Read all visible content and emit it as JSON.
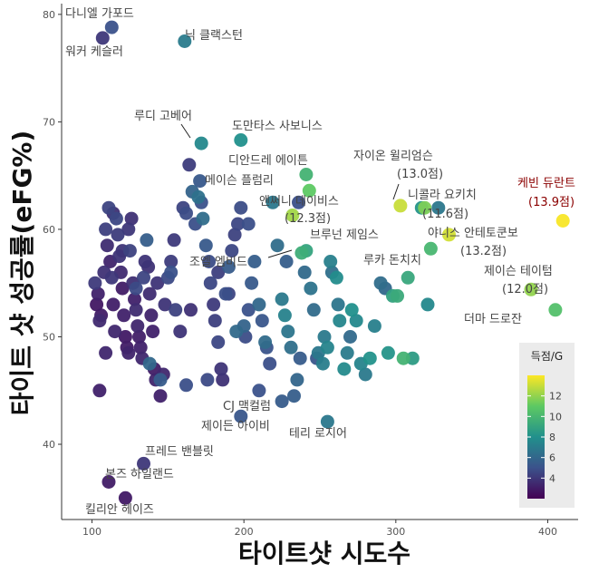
{
  "chart_data": {
    "type": "scatter",
    "xlabel": "타이트샷 시도수",
    "ylabel": "타이트 샷 성공률(eFG%)",
    "xlim": [
      80,
      420
    ],
    "ylim": [
      33,
      81
    ],
    "x_ticks": [
      100,
      200,
      300,
      400
    ],
    "y_ticks": [
      40,
      50,
      60,
      70,
      80
    ],
    "grid": false,
    "legend": {
      "title": "득점/G",
      "ticks": [
        4,
        6,
        8,
        10,
        12
      ],
      "range": [
        2,
        14
      ],
      "placement": "bottom-right"
    },
    "colors": [
      "#440154",
      "#3b528b",
      "#21908c",
      "#5dc963",
      "#fde725"
    ],
    "highlight_color": "#8b0000",
    "labeled_points": [
      {
        "name": "다니엘 가포드",
        "x": 113,
        "y": 78.8,
        "ppg": 5.0
      },
      {
        "name": "워커 케슬러",
        "x": 107,
        "y": 77.8,
        "ppg": 4.0
      },
      {
        "name": "닉 클랙스턴",
        "x": 161,
        "y": 77.5,
        "ppg": 7.0
      },
      {
        "name": "루디 고베어",
        "x": 172,
        "y": 68.0,
        "ppg": 7.6
      },
      {
        "name": "도만타스 사보니스",
        "x": 198,
        "y": 68.3,
        "ppg": 8.0
      },
      {
        "name": "디안드레 에이튼",
        "x": 241,
        "y": 65.1,
        "ppg": 9.8
      },
      {
        "name": "메이슨 플럼리",
        "x": 243,
        "y": 63.6,
        "ppg": 11.0
      },
      {
        "name": "자이온 윌리엄슨",
        "value_label": "(13.0점)",
        "x": 303,
        "y": 62.2,
        "ppg": 13.0
      },
      {
        "name": "니콜라 요키치",
        "value_label": "(11.6점)",
        "x": 319,
        "y": 62.0,
        "ppg": 11.6
      },
      {
        "name": "케빈 듀란트",
        "value_label": "(13.9점)",
        "x": 410,
        "y": 60.8,
        "ppg": 13.9
      },
      {
        "name": "앤써니 데이비스",
        "value_label": "(12.3점)",
        "x": 232,
        "y": 61.3,
        "ppg": 12.3
      },
      {
        "name": "브루넌 제임스",
        "x": 241,
        "y": 58.0,
        "ppg": 9.0
      },
      {
        "name": "야니스 안테토쿤보",
        "value_label": "(13.2점)",
        "x": 335,
        "y": 59.5,
        "ppg": 13.2
      },
      {
        "name": "조엘 엠비드",
        "x": 238,
        "y": 57.8,
        "ppg": 9.5
      },
      {
        "name": "루카 돈치치",
        "x": 323,
        "y": 58.2,
        "ppg": 10.0
      },
      {
        "name": "제이슨 테이텀",
        "value_label": "(12.0점)",
        "x": 389,
        "y": 54.4,
        "ppg": 12.0
      },
      {
        "name": "더마 드로잔",
        "x": 405,
        "y": 52.5,
        "ppg": 10.5
      },
      {
        "name": "CJ 맥컬럼",
        "x": 198,
        "y": 42.6,
        "ppg": 5.2
      },
      {
        "name": "제이든 아이비",
        "x": 225,
        "y": 44.0,
        "ppg": 5.5
      },
      {
        "name": "테리 로지어",
        "x": 255,
        "y": 42.1,
        "ppg": 6.8
      },
      {
        "name": "프레드 밴블릿",
        "x": 134,
        "y": 38.2,
        "ppg": 4.0
      },
      {
        "name": "본즈 하일랜드",
        "x": 111,
        "y": 36.5,
        "ppg": 3.0
      },
      {
        "name": "킬리안 헤이즈",
        "x": 122,
        "y": 35.0,
        "ppg": 2.9
      }
    ],
    "points": [
      [
        102,
        55.0,
        4.1
      ],
      [
        104,
        54.0,
        3.2
      ],
      [
        106,
        52.0,
        3.0
      ],
      [
        103,
        53.0,
        2.8
      ],
      [
        105,
        51.5,
        3.5
      ],
      [
        108,
        56.0,
        3.8
      ],
      [
        110,
        58.5,
        3.6
      ],
      [
        109,
        60.0,
        4.3
      ],
      [
        111,
        62.0,
        4.5
      ],
      [
        112,
        57.0,
        3.3
      ],
      [
        113,
        55.5,
        4.0
      ],
      [
        114,
        53.0,
        3.1
      ],
      [
        115,
        50.5,
        3.4
      ],
      [
        116,
        61.0,
        4.6
      ],
      [
        117,
        59.5,
        4.2
      ],
      [
        118,
        57.5,
        3.9
      ],
      [
        119,
        56.0,
        3.5
      ],
      [
        120,
        54.5,
        3.0
      ],
      [
        121,
        52.0,
        3.2
      ],
      [
        122,
        50.0,
        2.9
      ],
      [
        123,
        49.0,
        3.0
      ],
      [
        124,
        48.5,
        3.3
      ],
      [
        125,
        58.0,
        4.4
      ],
      [
        126,
        61.0,
        3.8
      ],
      [
        127,
        55.0,
        3.7
      ],
      [
        128,
        53.5,
        3.2
      ],
      [
        129,
        52.5,
        3.6
      ],
      [
        130,
        51.0,
        3.4
      ],
      [
        131,
        50.0,
        3.1
      ],
      [
        132,
        49.0,
        3.2
      ],
      [
        133,
        48.0,
        3.4
      ],
      [
        134,
        55.5,
        4.5
      ],
      [
        135,
        57.0,
        3.9
      ],
      [
        136,
        59.0,
        5.6
      ],
      [
        137,
        56.5,
        3.8
      ],
      [
        138,
        54.0,
        3.6
      ],
      [
        139,
        52.0,
        3.3
      ],
      [
        140,
        50.5,
        3.2
      ],
      [
        141,
        47.0,
        3.0
      ],
      [
        142,
        46.0,
        3.3
      ],
      [
        145,
        44.5,
        3.2
      ],
      [
        147,
        46.5,
        3.4
      ],
      [
        148,
        53.0,
        3.9
      ],
      [
        150,
        55.5,
        4.7
      ],
      [
        152,
        56.0,
        5.0
      ],
      [
        155,
        52.5,
        4.4
      ],
      [
        158,
        50.5,
        3.9
      ],
      [
        160,
        62.0,
        4.5
      ],
      [
        162,
        61.5,
        4.8
      ],
      [
        164,
        66.0,
        4.2
      ],
      [
        166,
        63.5,
        5.8
      ],
      [
        168,
        60.5,
        4.9
      ],
      [
        170,
        63.0,
        6.5
      ],
      [
        171,
        64.5,
        5.3
      ],
      [
        173,
        61.0,
        6.3
      ],
      [
        175,
        58.5,
        5.4
      ],
      [
        177,
        57.0,
        4.8
      ],
      [
        178,
        55.0,
        4.6
      ],
      [
        180,
        53.0,
        4.1
      ],
      [
        181,
        51.5,
        4.3
      ],
      [
        183,
        49.5,
        4.6
      ],
      [
        185,
        47.0,
        3.9
      ],
      [
        186,
        46.0,
        3.8
      ],
      [
        188,
        54.0,
        4.9
      ],
      [
        190,
        56.5,
        5.5
      ],
      [
        192,
        58.0,
        4.6
      ],
      [
        194,
        59.5,
        4.4
      ],
      [
        196,
        60.5,
        4.6
      ],
      [
        198,
        62.0,
        4.8
      ],
      [
        200,
        51.0,
        5.8
      ],
      [
        201,
        50.0,
        4.8
      ],
      [
        203,
        52.5,
        5.0
      ],
      [
        205,
        55.0,
        5.4
      ],
      [
        207,
        57.0,
        5.6
      ],
      [
        210,
        53.0,
        6.0
      ],
      [
        212,
        51.5,
        5.2
      ],
      [
        215,
        49.0,
        5.1
      ],
      [
        217,
        47.5,
        4.9
      ],
      [
        219,
        62.5,
        6.8
      ],
      [
        222,
        58.5,
        6.3
      ],
      [
        225,
        53.5,
        6.9
      ],
      [
        227,
        52.0,
        7.3
      ],
      [
        229,
        50.5,
        6.7
      ],
      [
        231,
        49.0,
        6.4
      ],
      [
        233,
        44.5,
        5.6
      ],
      [
        235,
        46.0,
        5.9
      ],
      [
        237,
        48.0,
        5.5
      ],
      [
        240,
        56.0,
        6.1
      ],
      [
        244,
        54.5,
        6.6
      ],
      [
        246,
        52.5,
        6.2
      ],
      [
        249,
        48.5,
        6.8
      ],
      [
        252,
        47.5,
        7.1
      ],
      [
        255,
        49.0,
        7.4
      ],
      [
        258,
        56.0,
        6.4
      ],
      [
        261,
        55.5,
        7.8
      ],
      [
        263,
        51.5,
        7.5
      ],
      [
        266,
        47.0,
        7.7
      ],
      [
        268,
        48.5,
        7.0
      ],
      [
        271,
        52.5,
        8.0
      ],
      [
        274,
        51.5,
        7.6
      ],
      [
        277,
        47.5,
        7.4
      ],
      [
        280,
        46.5,
        6.9
      ],
      [
        283,
        48.0,
        8.1
      ],
      [
        286,
        51.0,
        7.2
      ],
      [
        290,
        55.0,
        6.3
      ],
      [
        293,
        54.5,
        6.0
      ],
      [
        295,
        48.5,
        8.2
      ],
      [
        298,
        53.8,
        8.9
      ],
      [
        301,
        53.8,
        9.3
      ],
      [
        305,
        48.0,
        9.8
      ],
      [
        308,
        55.5,
        9.2
      ],
      [
        311,
        48.0,
        8.6
      ],
      [
        317,
        62.0,
        8.2
      ],
      [
        321,
        53.0,
        7.6
      ],
      [
        328,
        62.0,
        6.8
      ],
      [
        138,
        47.5,
        6.0
      ],
      [
        145,
        46.0,
        5.5
      ],
      [
        162,
        45.5,
        4.9
      ],
      [
        176,
        46.0,
        4.7
      ],
      [
        190,
        54.0,
        4.5
      ],
      [
        195,
        50.5,
        6.1
      ],
      [
        210,
        45.0,
        5.0
      ],
      [
        236,
        62.5,
        4.9
      ],
      [
        248,
        48.0,
        5.2
      ],
      [
        253,
        50.0,
        6.9
      ],
      [
        257,
        57.0,
        7.2
      ],
      [
        262,
        53.0,
        6.7
      ],
      [
        270,
        50.0,
        6.1
      ],
      [
        172,
        62.5,
        5.0
      ],
      [
        183,
        56.0,
        4.3
      ],
      [
        105,
        45.0,
        3.2
      ],
      [
        109,
        48.5,
        3.4
      ],
      [
        114,
        61.5,
        3.7
      ],
      [
        124,
        60.0,
        4.0
      ],
      [
        129,
        54.5,
        4.7
      ],
      [
        143,
        55.0,
        3.9
      ],
      [
        152,
        57.0,
        4.2
      ],
      [
        203,
        60.5,
        4.9
      ],
      [
        214,
        49.5,
        6.2
      ],
      [
        228,
        57.0,
        5.6
      ],
      [
        165,
        52.5,
        3.8
      ],
      [
        120,
        58.0,
        3.9
      ],
      [
        154,
        59.0,
        4.1
      ]
    ]
  }
}
